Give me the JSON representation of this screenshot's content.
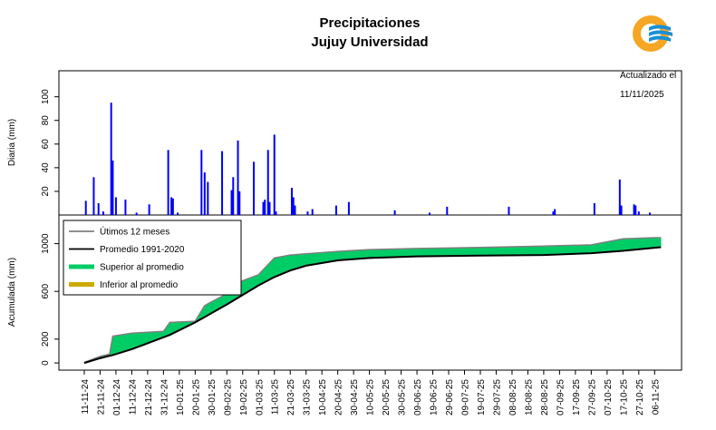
{
  "chart_data": [
    {
      "type": "bar",
      "title": "Precipitaciones",
      "subtitle": "Jujuy Universidad",
      "ylabel": "Diaria (mm)",
      "annotations": [
        "Actualizado el",
        "11/11/2025"
      ],
      "x": [
        "12-11-24",
        "17-11-24",
        "20-11-24",
        "23-11-24",
        "28-11-24",
        "29-11-24",
        "01-12-24",
        "07-12-24",
        "14-12-24",
        "22-12-24",
        "03-01-25",
        "05-01-25",
        "06-01-25",
        "09-01-25",
        "24-01-25",
        "26-01-25",
        "28-01-25",
        "06-02-25",
        "12-02-25",
        "13-02-25",
        "16-02-25",
        "17-02-25",
        "26-02-25",
        "04-03-25",
        "05-03-25",
        "07-03-25",
        "08-03-25",
        "11-03-25",
        "12-03-25",
        "22-03-25",
        "23-03-25",
        "24-03-25",
        "01-04-25",
        "04-04-25",
        "19-04-25",
        "27-04-25",
        "26-05-25",
        "17-06-25",
        "28-06-25",
        "06-08-25",
        "03-09-25",
        "04-09-25",
        "29-09-25",
        "15-10-25",
        "16-10-25",
        "24-10-25",
        "25-10-25",
        "27-10-25",
        "03-11-25"
      ],
      "values": [
        12,
        32,
        10,
        3,
        95,
        46,
        15,
        13,
        2,
        9,
        55,
        15,
        14,
        2,
        55,
        36,
        28,
        54,
        21,
        32,
        63,
        20,
        45,
        11,
        13,
        55,
        11,
        68,
        3,
        23,
        15,
        8,
        3,
        5,
        8,
        11,
        4,
        2,
        7,
        7,
        3,
        5,
        10,
        30,
        8,
        9,
        8,
        3,
        2
      ],
      "color": "#0000ff",
      "xlim": [
        "26-10-24",
        "23-11-25"
      ],
      "ylim": [
        0,
        122
      ],
      "yticks": [
        20,
        40,
        60,
        80,
        100
      ]
    },
    {
      "type": "line",
      "ylabel": "Acumulada (mm)",
      "x": [
        "11-11-24",
        "21-11-24",
        "27-11-24",
        "29-11-24",
        "11-12-24",
        "31-12-24",
        "04-01-25",
        "20-01-25",
        "26-01-25",
        "30-01-25",
        "09-02-25",
        "19-02-25",
        "01-03-25",
        "11-03-25",
        "21-03-25",
        "31-03-25",
        "20-04-25",
        "10-05-25",
        "09-06-25",
        "19-07-25",
        "28-08-25",
        "27-09-25",
        "17-10-25",
        "06-11-25",
        "10-11-25"
      ],
      "series": [
        {
          "name": "Útimos 12 meses",
          "color": "#808080",
          "values": [
            5,
            55,
            75,
            225,
            250,
            265,
            340,
            350,
            480,
            510,
            580,
            690,
            740,
            880,
            905,
            915,
            935,
            950,
            960,
            968,
            980,
            990,
            1040,
            1050,
            1050
          ]
        },
        {
          "name": "Promedio 1991-2020",
          "color": "#000000",
          "values": [
            0,
            40,
            60,
            66,
            115,
            215,
            235,
            340,
            385,
            415,
            490,
            570,
            650,
            720,
            775,
            815,
            860,
            880,
            893,
            900,
            905,
            920,
            940,
            965,
            970
          ]
        }
      ],
      "fills": [
        {
          "name": "Superior al promedio",
          "color": "#00cc66"
        },
        {
          "name": "Inferior al promedio",
          "color": "#ccaa00"
        }
      ],
      "legend": "top-left",
      "xlim": [
        "26-10-24",
        "23-11-25"
      ],
      "ylim": [
        -60,
        1240
      ],
      "yticks": [
        0,
        200,
        600,
        1000
      ],
      "xticks": [
        "11-11-24",
        "21-11-24",
        "01-12-24",
        "11-12-24",
        "21-12-24",
        "31-12-24",
        "10-01-25",
        "20-01-25",
        "30-01-25",
        "09-02-25",
        "19-02-25",
        "01-03-25",
        "11-03-25",
        "21-03-25",
        "31-03-25",
        "10-04-25",
        "20-04-25",
        "30-04-25",
        "10-05-25",
        "20-05-25",
        "30-05-25",
        "09-06-25",
        "19-06-25",
        "29-06-25",
        "09-07-25",
        "19-07-25",
        "29-07-25",
        "08-08-25",
        "18-08-25",
        "28-08-25",
        "07-09-25",
        "17-09-25",
        "27-09-25",
        "07-10-25",
        "17-10-25",
        "27-10-25",
        "06-11-25"
      ]
    }
  ]
}
